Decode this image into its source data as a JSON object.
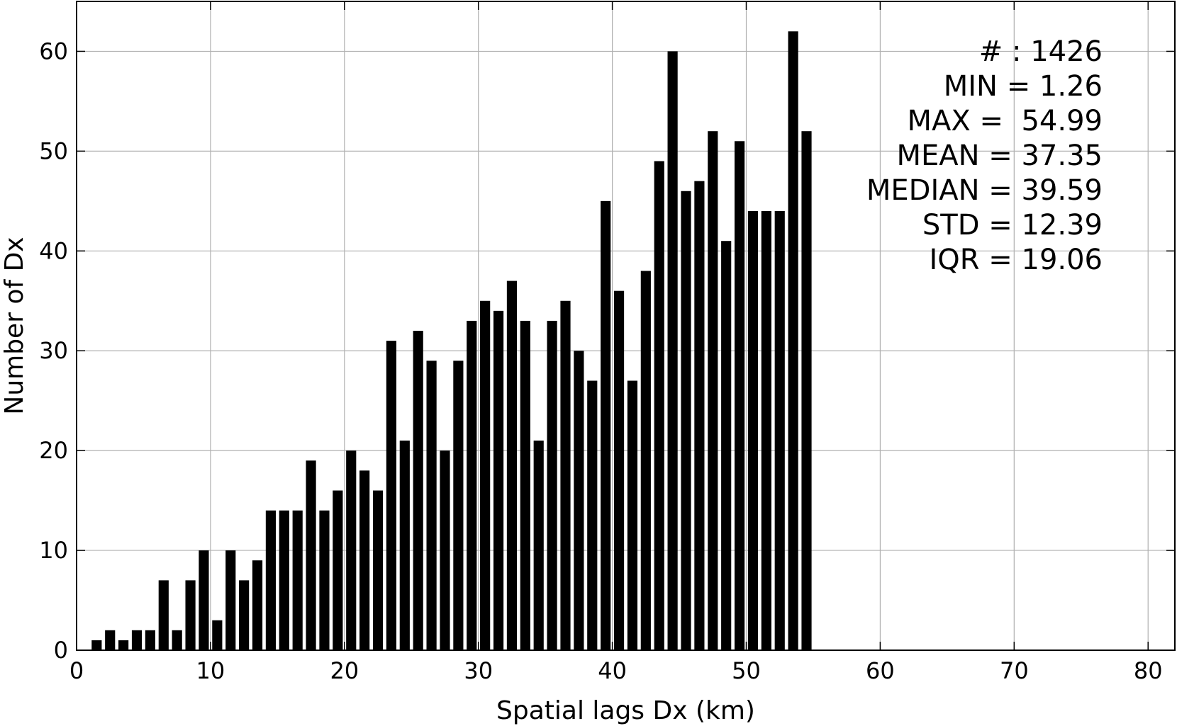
{
  "chart_data": {
    "type": "bar",
    "title": "",
    "xlabel": "Spatial lags Dx (km)",
    "ylabel": "Number of Dx",
    "xlim": [
      0,
      82
    ],
    "ylim": [
      0,
      65
    ],
    "grid": true,
    "xticks": [
      0,
      10,
      20,
      30,
      40,
      50,
      60,
      70,
      80
    ],
    "yticks": [
      0,
      10,
      20,
      30,
      40,
      50,
      60
    ],
    "bin_width": 1,
    "x": [
      1.5,
      2.5,
      3.5,
      4.5,
      5.5,
      6.5,
      7.5,
      8.5,
      9.5,
      10.5,
      11.5,
      12.5,
      13.5,
      14.5,
      15.5,
      16.5,
      17.5,
      18.5,
      19.5,
      20.5,
      21.5,
      22.5,
      23.5,
      24.5,
      25.5,
      26.5,
      27.5,
      28.5,
      29.5,
      30.5,
      31.5,
      32.5,
      33.5,
      34.5,
      35.5,
      36.5,
      37.5,
      38.5,
      39.5,
      40.5,
      41.5,
      42.5,
      43.5,
      44.5,
      45.5,
      46.5,
      47.5,
      48.5,
      49.5,
      50.5,
      51.5,
      52.5,
      53.5,
      54.5
    ],
    "values": [
      1,
      2,
      1,
      2,
      2,
      7,
      2,
      7,
      10,
      3,
      10,
      7,
      9,
      14,
      14,
      14,
      19,
      14,
      16,
      20,
      18,
      16,
      31,
      21,
      32,
      29,
      20,
      29,
      33,
      35,
      34,
      37,
      33,
      21,
      33,
      35,
      30,
      27,
      45,
      36,
      27,
      38,
      49,
      60,
      46,
      47,
      52,
      41,
      51,
      44,
      44,
      44,
      62,
      52
    ]
  },
  "stats": [
    "# : 1426",
    "MIN = 1.26",
    "MAX =  54.99",
    "MEAN = 37.35",
    "MEDIAN = 39.59",
    "STD = 12.39",
    "IQR = 19.06"
  ]
}
